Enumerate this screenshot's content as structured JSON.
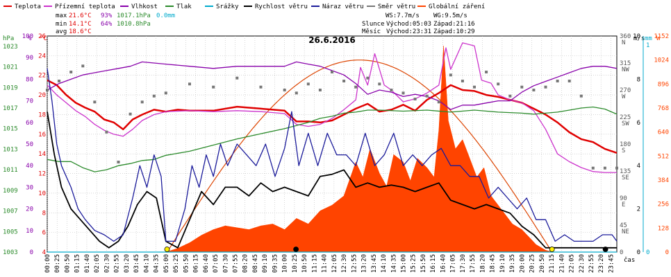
{
  "legend": [
    {
      "label": "Teplota",
      "color": "#e00000",
      "kind": "line"
    },
    {
      "label": "Přízemní teplota",
      "color": "#cc33cc",
      "kind": "line"
    },
    {
      "label": "Vlhkost",
      "color": "#8800aa",
      "kind": "line"
    },
    {
      "label": "Tlak",
      "color": "#2a8a2a",
      "kind": "line"
    },
    {
      "label": "Srážky",
      "color": "#00aacc",
      "kind": "line"
    },
    {
      "label": "Rychlost větru",
      "color": "#000000",
      "kind": "line"
    },
    {
      "label": "Náraz větru",
      "color": "#1a1a9a",
      "kind": "line"
    },
    {
      "label": "Směr větru",
      "color": "#777777",
      "kind": "line"
    },
    {
      "label": "Globální záření",
      "color": "#ff4400",
      "kind": "line"
    }
  ],
  "stats": {
    "max_label": "max",
    "max_temp": "21.6°C",
    "max_hum": "93%",
    "max_press": "1017.1hPa",
    "max_rain": "0.0mm",
    "min_label": "min",
    "min_temp": "14.1°C",
    "min_hum": "64%",
    "min_press": "1010.8hPa",
    "avg_label": "avg",
    "avg_temp": "18.6°C"
  },
  "wind_info": {
    "ws": "WS:7.7m/s",
    "wg": "WG:9.5m/s"
  },
  "sun_info": {
    "label": "Slunce",
    "rise": "Východ:05:03",
    "set": "Západ:21:16"
  },
  "moon_info": {
    "label": "Měsíc",
    "rise": "Východ:23:31",
    "set": "Západ:10:29"
  },
  "date": "26.6.2016",
  "axes": {
    "hpa": {
      "unit": "hPa",
      "ticks": [
        "1023",
        "1021",
        "1019",
        "1017",
        "1015",
        "1013",
        "1011",
        "1009",
        "1007",
        "1005",
        "1003"
      ],
      "color": "#2a8a2a"
    },
    "pct": {
      "unit": "%",
      "ticks": [
        "100",
        "90",
        "80",
        "70",
        "60",
        "50",
        "40",
        "30",
        "20",
        "10",
        "0"
      ],
      "color": "#8800aa"
    },
    "degc": {
      "unit": "°C",
      "ticks": [
        "26",
        "24",
        "22",
        "20",
        "18",
        "16",
        "14",
        "12",
        "10",
        "8",
        "6",
        "4"
      ],
      "color": "#e00000"
    },
    "dir": {
      "ticks": [
        {
          "v": "360",
          "s": "N"
        },
        {
          "v": "315",
          "s": "NW"
        },
        {
          "v": "270",
          "s": "W"
        },
        {
          "v": "225",
          "s": "SW"
        },
        {
          "v": "180",
          "s": "S"
        },
        {
          "v": "135",
          "s": "SE"
        },
        {
          "v": "90",
          "s": "E"
        },
        {
          "v": "45",
          "s": "NE"
        },
        {
          "v": "0",
          "s": ""
        }
      ]
    },
    "ms": {
      "unit": "m/s",
      "ticks": [
        "10",
        "8",
        "6",
        "4",
        "2",
        "0"
      ]
    },
    "mm": {
      "unit": "mm",
      "ticks": [
        "1",
        "0"
      ],
      "color": "#00aacc"
    },
    "w": {
      "unit": "W",
      "ticks": [
        "1152",
        "1024",
        "896",
        "768",
        "640",
        "512",
        "384",
        "256",
        "128",
        "0"
      ],
      "color": "#ff4400"
    },
    "time_unit": "čas",
    "time_ticks": [
      "00:00",
      "00:25",
      "00:50",
      "01:15",
      "01:40",
      "02:05",
      "02:30",
      "02:55",
      "03:20",
      "03:45",
      "04:10",
      "04:35",
      "05:00",
      "05:25",
      "05:50",
      "06:15",
      "06:40",
      "07:05",
      "07:30",
      "07:55",
      "08:20",
      "08:45",
      "09:10",
      "09:35",
      "10:00",
      "10:25",
      "10:50",
      "11:15",
      "11:40",
      "12:05",
      "12:30",
      "12:55",
      "13:20",
      "13:45",
      "14:10",
      "14:35",
      "15:00",
      "15:25",
      "15:50",
      "16:15",
      "16:40",
      "17:05",
      "17:30",
      "17:55",
      "18:20",
      "18:45",
      "19:10",
      "19:35",
      "20:00",
      "20:25",
      "20:50",
      "21:15",
      "21:40",
      "22:05",
      "22:30",
      "22:55",
      "23:20",
      "23:45"
    ]
  },
  "chart_data": {
    "type": "line",
    "title": "26.6.2016",
    "x_unit": "hours",
    "series": [
      {
        "name": "Teplota",
        "unit": "°C",
        "color": "#e00000",
        "x": [
          0,
          0.4,
          0.8,
          1.2,
          1.6,
          2.0,
          2.4,
          2.8,
          3.2,
          3.6,
          4.0,
          4.5,
          5.0,
          5.5,
          6,
          7,
          8,
          9,
          10,
          10.5,
          11,
          11.5,
          12,
          12.5,
          13,
          13.5,
          14,
          14.5,
          15,
          15.5,
          16,
          16.5,
          17,
          17.5,
          18,
          18.5,
          19,
          19.5,
          20,
          20.5,
          21,
          21.5,
          22,
          22.5,
          23,
          23.5,
          24
        ],
        "y": [
          21.5,
          21,
          20,
          19.2,
          18.7,
          18.3,
          17.5,
          17.2,
          16.5,
          17.5,
          18,
          18.5,
          18.3,
          18.5,
          18.4,
          18.4,
          18.8,
          18.6,
          18.4,
          17.3,
          17.3,
          17.2,
          17.4,
          18.0,
          18.6,
          19.1,
          18.3,
          18.5,
          19.0,
          18.4,
          19.5,
          20.2,
          21.0,
          20.5,
          20.4,
          20.0,
          19.8,
          19.5,
          19.2,
          18.6,
          18.0,
          17.2,
          16.2,
          15.5,
          15.2,
          14.5,
          14.1
        ]
      },
      {
        "name": "Přízemní teplota",
        "unit": "°C",
        "color": "#cc33cc",
        "x": [
          0,
          0.4,
          0.8,
          1.2,
          1.6,
          2.0,
          2.4,
          2.8,
          3.2,
          3.6,
          4.0,
          4.5,
          5.0,
          6,
          7,
          8,
          9,
          10,
          10.5,
          11,
          11.5,
          12,
          12.5,
          13,
          13.2,
          13.5,
          13.8,
          14.2,
          14.5,
          15,
          15.5,
          16,
          16.5,
          16.8,
          17,
          17.5,
          18,
          18.3,
          18.7,
          19,
          19.5,
          20,
          20.5,
          21,
          21.5,
          22,
          22.5,
          23,
          23.5,
          24
        ],
        "y": [
          21,
          20,
          19.2,
          18.4,
          17.8,
          17.0,
          16.4,
          16.0,
          15.8,
          16.5,
          17.4,
          18.0,
          18.3,
          18.4,
          18.3,
          18.4,
          18.3,
          18.1,
          17.0,
          16.8,
          17.0,
          17.6,
          18.5,
          19.5,
          22.8,
          21.0,
          24.2,
          21.0,
          20.5,
          19.3,
          19.6,
          20.2,
          21.0,
          24.8,
          22.6,
          25.3,
          25.0,
          21.5,
          21.2,
          20.0,
          19.5,
          19.2,
          18.4,
          16.5,
          14.0,
          13.2,
          12.6,
          12.2,
          12.1,
          12.1
        ]
      },
      {
        "name": "Vlhkost",
        "unit": "%",
        "color": "#8800aa",
        "x": [
          0,
          0.5,
          1,
          1.5,
          2,
          2.5,
          3,
          3.5,
          4,
          5,
          6,
          7,
          8,
          9,
          10,
          10.5,
          11,
          11.5,
          12,
          12.5,
          13,
          13.5,
          14,
          14.5,
          15,
          15.5,
          16,
          16.5,
          17,
          17.5,
          18,
          18.5,
          19,
          19.5,
          20,
          20.5,
          21,
          21.5,
          22,
          22.5,
          23,
          23.5,
          24
        ],
        "y": [
          75,
          78,
          80,
          82,
          83,
          84,
          85,
          86,
          88,
          87,
          86,
          85,
          86,
          86,
          86,
          88,
          87,
          86,
          84,
          82,
          78,
          73,
          75,
          74,
          72,
          73,
          72,
          70,
          66,
          68,
          68,
          69,
          70,
          70,
          74,
          77,
          79,
          81,
          83,
          85,
          86,
          86,
          85
        ]
      },
      {
        "name": "Tlak",
        "unit": "hPa",
        "color": "#2a8a2a",
        "x": [
          0,
          0.5,
          1,
          1.5,
          2,
          2.5,
          3,
          3.5,
          4,
          4.5,
          5,
          6,
          7,
          8,
          9,
          10,
          10.5,
          11,
          11.5,
          12,
          12.5,
          13,
          13.5,
          14,
          15,
          16,
          17,
          18,
          19,
          20,
          20.5,
          21,
          21.5,
          22,
          22.5,
          23,
          23.5,
          24
        ],
        "y": [
          1012,
          1011.8,
          1011.8,
          1011.2,
          1010.8,
          1011.0,
          1011.4,
          1011.6,
          1011.9,
          1012.0,
          1012.4,
          1012.8,
          1013.4,
          1014.0,
          1014.5,
          1015.0,
          1015.3,
          1015.6,
          1016.0,
          1016.2,
          1016.5,
          1016.6,
          1016.8,
          1016.8,
          1016.7,
          1016.8,
          1016.6,
          1016.8,
          1016.6,
          1016.5,
          1016.4,
          1016.5,
          1016.6,
          1016.8,
          1017.0,
          1017.1,
          1016.9,
          1016.4
        ]
      },
      {
        "name": "Srážky",
        "unit": "mm",
        "color": "#00aacc",
        "x": [
          0,
          24
        ],
        "y": [
          0,
          0
        ]
      },
      {
        "name": "Rychlost větru",
        "unit": "m/s",
        "color": "#000000",
        "x": [
          0,
          0.3,
          0.6,
          1.0,
          1.4,
          1.8,
          2.2,
          2.6,
          3.0,
          3.4,
          3.8,
          4.2,
          4.6,
          5.0,
          5.5,
          6,
          6.5,
          7,
          7.5,
          8,
          8.5,
          9,
          9.5,
          10,
          10.5,
          11,
          11.5,
          12,
          12.5,
          13,
          13.5,
          14,
          14.5,
          15,
          15.5,
          16,
          16.5,
          17,
          17.5,
          18,
          18.5,
          19,
          19.5,
          20,
          20.5,
          21,
          21.5,
          22,
          22.5,
          23,
          23.5,
          24
        ],
        "y": [
          6.5,
          4.5,
          3.0,
          2.0,
          1.5,
          1.0,
          0.5,
          0.2,
          0.5,
          1.2,
          2.2,
          2.8,
          2.5,
          0.5,
          0.2,
          1.5,
          2.8,
          2.2,
          3.0,
          3.0,
          2.6,
          3.2,
          2.8,
          3.0,
          2.8,
          2.6,
          3.5,
          3.6,
          3.8,
          3.0,
          3.2,
          3.0,
          3.1,
          3.0,
          2.8,
          3.0,
          3.2,
          2.4,
          2.2,
          2.0,
          2.2,
          2.0,
          1.8,
          1.2,
          0.8,
          0.2,
          0.2,
          0.2,
          0.2,
          0.2,
          0.2,
          0.2
        ]
      },
      {
        "name": "Náraz větru",
        "unit": "m/s",
        "color": "#1a1a9a",
        "x": [
          0,
          0.2,
          0.4,
          0.6,
          0.8,
          1.0,
          1.3,
          1.6,
          2.0,
          2.4,
          2.8,
          3.2,
          3.6,
          3.9,
          4.2,
          4.5,
          4.8,
          5.0,
          5.4,
          5.8,
          6.1,
          6.4,
          6.7,
          7.0,
          7.3,
          7.6,
          8.0,
          8.4,
          8.8,
          9.2,
          9.6,
          10.0,
          10.3,
          10.6,
          11,
          11.4,
          11.8,
          12.2,
          12.6,
          13,
          13.4,
          13.8,
          14.2,
          14.6,
          15,
          15.4,
          15.8,
          16.2,
          16.6,
          17,
          17.4,
          17.8,
          18.2,
          18.6,
          19,
          19.4,
          19.8,
          20.2,
          20.6,
          21,
          21.4,
          21.8,
          22.2,
          22.6,
          23,
          23.4,
          23.8,
          24
        ],
        "y": [
          8.5,
          7.0,
          5.0,
          4.0,
          3.5,
          3.0,
          2.0,
          1.5,
          1.0,
          0.8,
          0.5,
          0.8,
          2.5,
          4.0,
          3.0,
          4.5,
          3.5,
          0.5,
          0.5,
          2.0,
          4.0,
          3.0,
          4.5,
          3.5,
          5.0,
          4.0,
          5.0,
          4.5,
          4.0,
          5.0,
          3.5,
          4.8,
          6.5,
          4.0,
          5.5,
          4.0,
          5.5,
          4.5,
          4.5,
          4.0,
          5.5,
          4.0,
          4.5,
          5.5,
          4.0,
          4.5,
          4.0,
          4.5,
          4.8,
          4.0,
          4.0,
          3.5,
          3.5,
          2.5,
          3.0,
          2.5,
          2.0,
          2.5,
          1.5,
          1.5,
          0.5,
          0.8,
          0.5,
          0.5,
          0.5,
          0.8,
          0.8,
          0.5
        ]
      },
      {
        "name": "Směr větru",
        "unit": "°",
        "color": "#777777",
        "x": [
          0,
          0.5,
          1,
          1.5,
          2,
          2.5,
          3,
          3.5,
          4,
          4.5,
          5,
          6,
          7,
          8,
          9,
          10,
          10.5,
          11,
          11.5,
          12,
          12.5,
          13,
          13.5,
          14,
          14.5,
          15,
          15.5,
          16,
          16.5,
          17,
          17.5,
          18,
          18.5,
          19,
          19.5,
          20,
          20.5,
          21,
          21.5,
          22,
          22.5,
          23,
          23.5,
          24
        ],
        "y": [
          270,
          285,
          300,
          310,
          250,
          200,
          150,
          230,
          250,
          260,
          265,
          280,
          275,
          290,
          275,
          270,
          265,
          280,
          270,
          300,
          285,
          275,
          290,
          280,
          270,
          265,
          255,
          260,
          250,
          295,
          285,
          275,
          300,
          280,
          260,
          275,
          270,
          275,
          285,
          285,
          260,
          140,
          140,
          140
        ]
      },
      {
        "name": "Globální záření",
        "unit": "W",
        "color": "#ff4400",
        "x": [
          0,
          5.0,
          5.5,
          6,
          6.5,
          7,
          7.5,
          8,
          8.5,
          9,
          9.5,
          10,
          10.5,
          11,
          11.5,
          12,
          12.5,
          13,
          13.3,
          13.6,
          14,
          14.3,
          14.6,
          15,
          15.3,
          15.6,
          16,
          16.3,
          16.5,
          16.7,
          16.9,
          17.2,
          17.5,
          17.8,
          18.1,
          18.4,
          18.7,
          19,
          19.3,
          19.6,
          20,
          20.3,
          20.6,
          21,
          21.3,
          24
        ],
        "y": [
          0,
          0,
          20,
          50,
          90,
          120,
          140,
          130,
          120,
          140,
          150,
          120,
          180,
          150,
          220,
          250,
          300,
          480,
          400,
          550,
          420,
          350,
          520,
          480,
          380,
          500,
          450,
          400,
          650,
          1100,
          700,
          550,
          600,
          500,
          400,
          450,
          300,
          250,
          200,
          150,
          120,
          80,
          40,
          10,
          0,
          0
        ]
      }
    ],
    "theoretical_radiation": {
      "name": "",
      "x": [
        5.05,
        13.1,
        21.27
      ],
      "y": [
        0,
        1024,
        0
      ]
    },
    "ranges": {
      "temp": [
        4,
        26
      ],
      "humidity": [
        0,
        100
      ],
      "pressure": [
        1003,
        1024
      ],
      "wind": [
        0,
        10
      ],
      "direction": [
        0,
        360
      ],
      "radiation": [
        0,
        1152
      ],
      "time": [
        0,
        24
      ]
    },
    "markers": [
      {
        "name": "sunrise",
        "x": 5.05
      },
      {
        "name": "sunset",
        "x": 21.27
      },
      {
        "name": "moonset",
        "x": 10.48
      },
      {
        "name": "moonrise",
        "x": 23.52
      }
    ],
    "grid": true
  }
}
